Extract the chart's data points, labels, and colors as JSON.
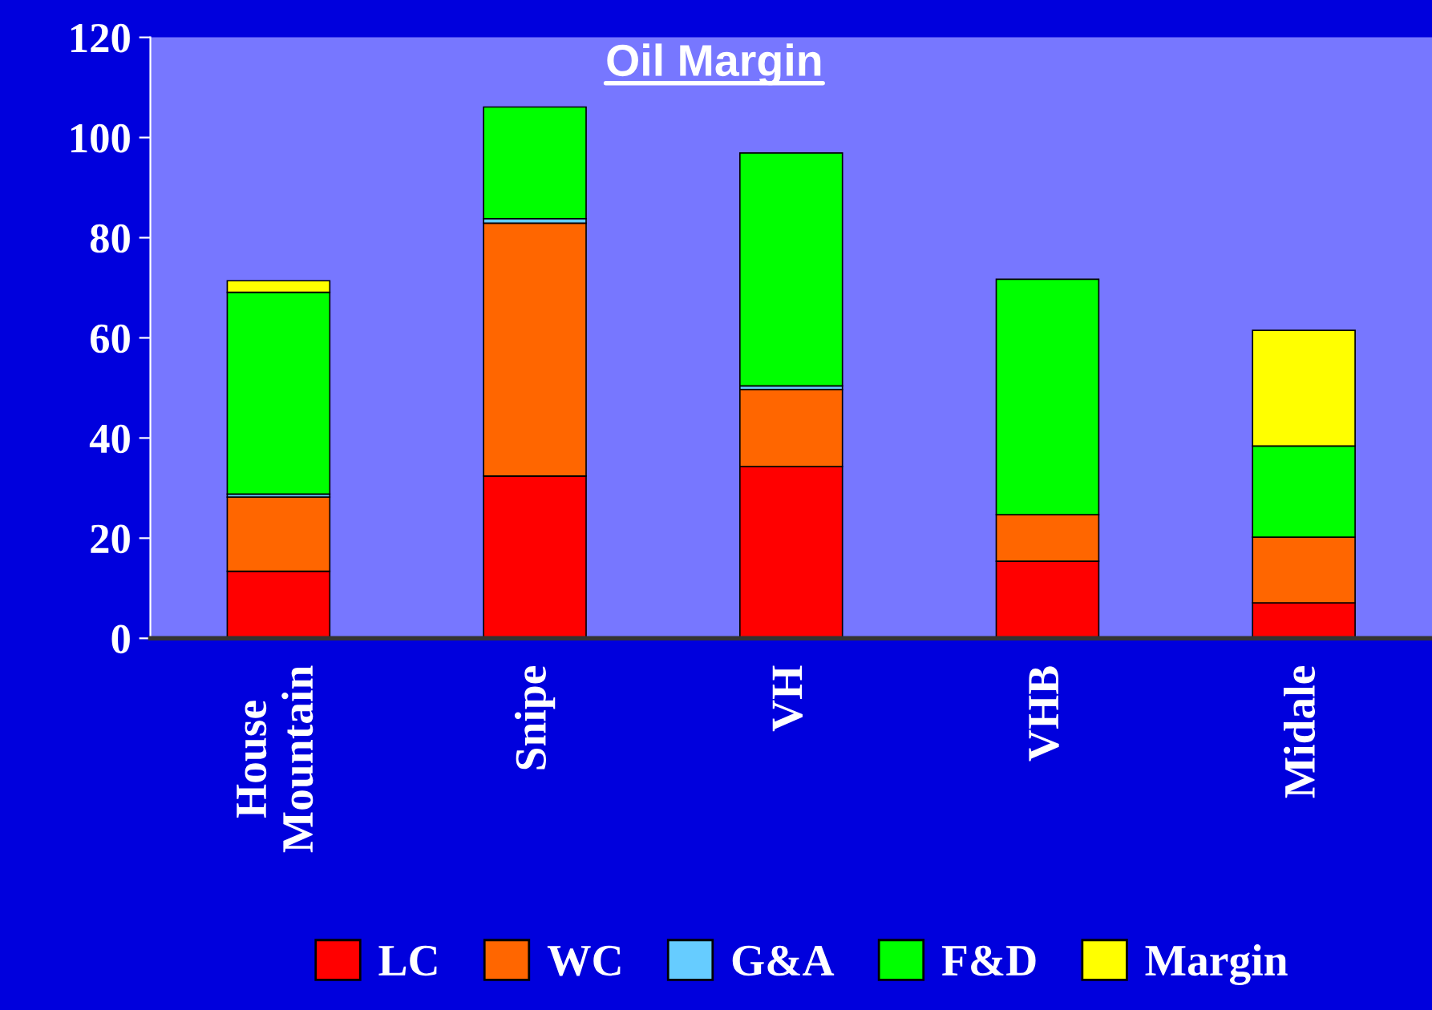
{
  "chart_data": {
    "type": "bar",
    "title": "Oil Margin",
    "stacked": true,
    "categories": [
      "House\nMountain",
      "Snipe",
      "VH",
      "VHB",
      "Midale"
    ],
    "series": [
      {
        "name": "LC",
        "color": "#ff0000",
        "values": [
          13.4,
          32.4,
          34.3,
          15.4,
          7.1
        ]
      },
      {
        "name": "WC",
        "color": "#ff6600",
        "values": [
          14.8,
          50.5,
          15.4,
          9.3,
          13.1
        ]
      },
      {
        "name": "G&A",
        "color": "#66ccff",
        "values": [
          0.6,
          0.9,
          0.7,
          null,
          null
        ]
      },
      {
        "name": "F&D",
        "color": "#00ff00",
        "values": [
          40.3,
          22.3,
          46.5,
          47.0,
          18.2
        ]
      },
      {
        "name": "Margin",
        "color": "#ffff00",
        "values": [
          2.3,
          null,
          null,
          null,
          23.1
        ]
      }
    ],
    "ylim": [
      0,
      120
    ],
    "yticks": [
      0,
      20,
      40,
      60,
      80,
      100,
      120
    ],
    "grid": false,
    "legend": "bottom"
  }
}
